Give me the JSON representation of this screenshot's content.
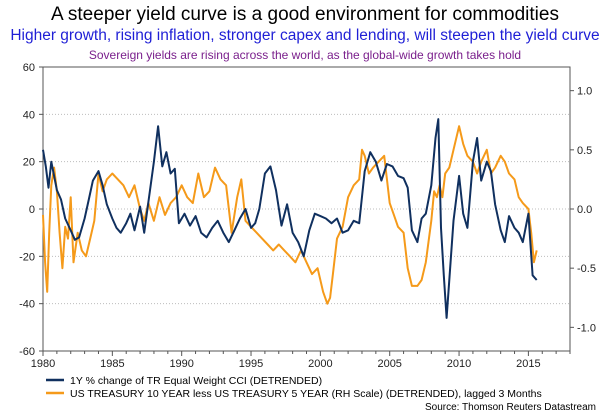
{
  "title": "A steeper yield curve is a good environment for commodities",
  "subtitle": "Higher growth, rising inflation, stronger capex and lending, will steepen the yield curve",
  "subtitle2": "Sovereign yields are rising across the world, as the global-wide growth takes hold",
  "source": "Source: Thomson Reuters Datastream",
  "colors": {
    "subtitle": "#1f1fd6",
    "subtitle2": "#7a1f8c",
    "series_cci": "#10305f",
    "series_treasury": "#f59a1a",
    "grid": "#bdbdbd"
  },
  "chart_data": {
    "type": "line",
    "x_axis": {
      "range": [
        1980,
        2018
      ],
      "ticks": [
        1980,
        1985,
        1990,
        1995,
        2000,
        2005,
        2010,
        2015
      ]
    },
    "y_left": {
      "range": [
        -60,
        60
      ],
      "ticks": [
        -60,
        -40,
        -20,
        0,
        20,
        40,
        60
      ]
    },
    "y_right": {
      "range": [
        -1.2,
        1.2
      ],
      "ticks": [
        -1.0,
        -0.5,
        0.0,
        0.5,
        1.0
      ],
      "tick_labels": [
        "-1.0",
        "-0.5",
        "0.0",
        "0.5",
        "1.0"
      ]
    },
    "grid": "horizontal-dotted",
    "legend_position": "bottom-left",
    "series": [
      {
        "name": "1Y % change of TR Equal Weight CCI (DETRENDED)",
        "axis": "left",
        "x": [
          1980.0,
          1980.2,
          1980.4,
          1980.6,
          1980.8,
          1981.0,
          1981.3,
          1981.6,
          1982.0,
          1982.3,
          1982.6,
          1983.0,
          1983.3,
          1983.6,
          1984.0,
          1984.3,
          1984.6,
          1985.0,
          1985.3,
          1985.6,
          1986.0,
          1986.3,
          1986.6,
          1987.0,
          1987.3,
          1987.6,
          1988.0,
          1988.3,
          1988.6,
          1988.9,
          1989.2,
          1989.5,
          1989.8,
          1990.2,
          1990.6,
          1991.0,
          1991.4,
          1991.8,
          1992.2,
          1992.6,
          1993.0,
          1993.4,
          1993.8,
          1994.2,
          1994.6,
          1995.0,
          1995.3,
          1995.6,
          1996.0,
          1996.4,
          1996.8,
          1997.2,
          1997.6,
          1998.0,
          1998.4,
          1998.8,
          1999.2,
          1999.6,
          2000.0,
          2000.4,
          2000.8,
          2001.2,
          2001.6,
          2002.0,
          2002.4,
          2002.8,
          2003.2,
          2003.6,
          2004.0,
          2004.4,
          2004.8,
          2005.2,
          2005.6,
          2006.0,
          2006.3,
          2006.6,
          2007.0,
          2007.3,
          2007.6,
          2008.0,
          2008.3,
          2008.5,
          2008.7,
          2008.9,
          2009.1,
          2009.3,
          2009.6,
          2010.0,
          2010.3,
          2010.6,
          2011.0,
          2011.3,
          2011.6,
          2012.0,
          2012.3,
          2012.6,
          2013.0,
          2013.3,
          2013.6,
          2014.0,
          2014.3,
          2014.6,
          2015.0,
          2015.3,
          2015.6
        ],
        "y": [
          25,
          18,
          9,
          20,
          14,
          8,
          4,
          -4,
          -9,
          -13,
          -12,
          -4,
          4,
          12,
          16,
          10,
          2,
          -4,
          -8,
          -10,
          -6,
          -2,
          -9,
          1,
          -10,
          3,
          20,
          35,
          18,
          24,
          15,
          17,
          -6,
          -2,
          -7,
          -3,
          -10,
          -12,
          -8,
          -5,
          -10,
          -14,
          -9,
          -4,
          0,
          -8,
          -6,
          0,
          15,
          18,
          8,
          -7,
          2,
          -10,
          -14,
          -20,
          -9,
          -2,
          -3,
          -4,
          -6,
          -4,
          -10,
          -9,
          -5,
          -6,
          16,
          24,
          20,
          12,
          19,
          18,
          14,
          13,
          9,
          -9,
          -14,
          -4,
          -2,
          10,
          30,
          38,
          -8,
          -28,
          -46,
          -30,
          -5,
          14,
          -2,
          -8,
          20,
          30,
          12,
          20,
          16,
          2,
          -9,
          -14,
          -3,
          -8,
          -10,
          -14,
          -2,
          -28,
          -30
        ]
      },
      {
        "name": "US TREASURY 10 YEAR  less US TREASURY 5 YEAR  (RH Scale) (DETRENDED), lagged 3 Months",
        "axis": "right",
        "x": [
          1980.0,
          1980.15,
          1980.3,
          1980.45,
          1980.6,
          1980.8,
          1981.0,
          1981.2,
          1981.4,
          1981.6,
          1981.8,
          1982.0,
          1982.2,
          1982.5,
          1982.8,
          1983.1,
          1983.4,
          1983.7,
          1984.0,
          1984.3,
          1984.6,
          1985.0,
          1985.4,
          1985.8,
          1986.2,
          1986.6,
          1987.0,
          1987.3,
          1987.6,
          1988.0,
          1988.4,
          1988.8,
          1989.2,
          1989.6,
          1990.0,
          1990.4,
          1990.8,
          1991.2,
          1991.6,
          1992.0,
          1992.4,
          1992.8,
          1993.2,
          1993.6,
          1994.0,
          1994.3,
          1994.6,
          1995.0,
          1995.4,
          1995.8,
          1996.2,
          1996.6,
          1997.0,
          1997.4,
          1997.8,
          1998.2,
          1998.6,
          1999.0,
          1999.4,
          1999.8,
          2000.2,
          2000.5,
          2000.7,
          2000.9,
          2001.2,
          2001.6,
          2002.0,
          2002.4,
          2002.8,
          2003.0,
          2003.2,
          2003.5,
          2003.8,
          2004.2,
          2004.6,
          2005.0,
          2005.3,
          2005.6,
          2006.0,
          2006.3,
          2006.6,
          2007.0,
          2007.3,
          2007.6,
          2008.0,
          2008.2,
          2008.4,
          2008.6,
          2008.8,
          2009.0,
          2009.3,
          2009.6,
          2010.0,
          2010.3,
          2010.6,
          2011.0,
          2011.3,
          2011.6,
          2012.0,
          2012.3,
          2012.6,
          2013.0,
          2013.3,
          2013.6,
          2014.0,
          2014.3,
          2014.6,
          2015.0,
          2015.2,
          2015.4,
          2015.6
        ],
        "y": [
          -0.05,
          -0.45,
          -0.7,
          -0.2,
          0.2,
          0.35,
          0.15,
          -0.2,
          -0.5,
          -0.15,
          -0.25,
          0.1,
          -0.45,
          -0.2,
          -0.35,
          -0.4,
          -0.25,
          -0.1,
          0.3,
          0.15,
          0.25,
          0.3,
          0.25,
          0.2,
          0.1,
          0.2,
          0.0,
          -0.1,
          0.05,
          -0.1,
          0.1,
          -0.05,
          0.05,
          0.1,
          0.2,
          0.1,
          0.05,
          0.3,
          0.1,
          0.15,
          0.35,
          0.25,
          0.2,
          -0.2,
          0.1,
          0.25,
          -0.1,
          -0.15,
          -0.2,
          -0.25,
          -0.3,
          -0.35,
          -0.3,
          -0.35,
          -0.4,
          -0.45,
          -0.35,
          -0.45,
          -0.55,
          -0.5,
          -0.7,
          -0.8,
          -0.75,
          -0.55,
          -0.25,
          -0.15,
          0.1,
          0.2,
          0.25,
          0.5,
          0.45,
          0.3,
          0.35,
          0.4,
          0.45,
          0.05,
          -0.05,
          -0.15,
          -0.2,
          -0.5,
          -0.65,
          -0.65,
          -0.6,
          -0.45,
          -0.1,
          0.15,
          0.1,
          0.2,
          0.1,
          0.3,
          0.35,
          0.5,
          0.7,
          0.55,
          0.45,
          0.4,
          0.3,
          0.4,
          0.5,
          0.3,
          0.35,
          0.45,
          0.4,
          0.3,
          0.25,
          0.1,
          0.05,
          0.0,
          -0.2,
          -0.45,
          -0.35
        ]
      }
    ]
  }
}
